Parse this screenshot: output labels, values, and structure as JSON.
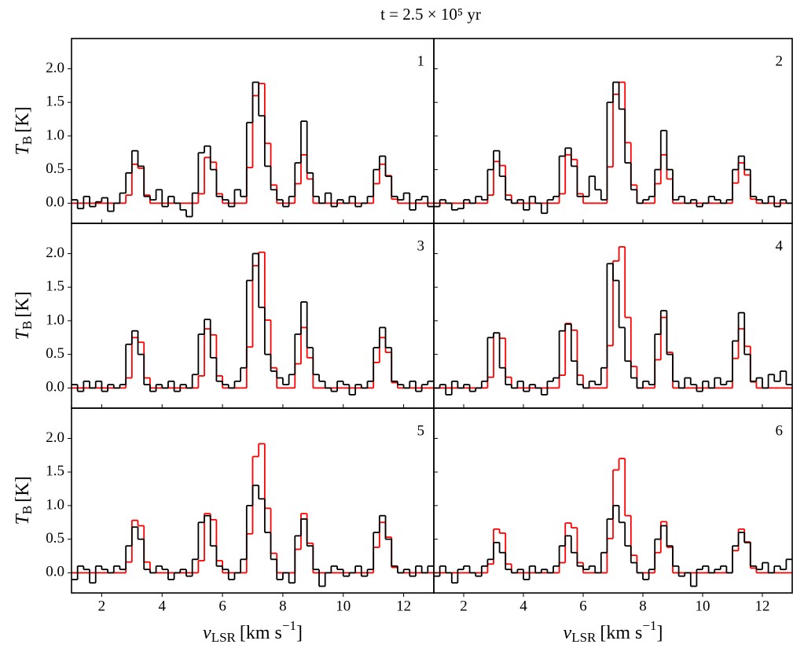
{
  "title": "t = 2.5 × 10⁵ yr",
  "chart_data": {
    "type": "line",
    "xlabel": {
      "symbol": "v",
      "sub": "LSR",
      "unit": "[km s",
      "sup": "−1",
      "close": "]"
    },
    "ylabel": {
      "symbol": "T",
      "sub": "B",
      "unit": "[K]"
    },
    "xlim": [
      1.0,
      13.0
    ],
    "ylim": [
      -0.3,
      2.45
    ],
    "xticks": [
      2,
      4,
      6,
      8,
      10,
      12
    ],
    "yticks": [
      {
        "value": 0,
        "label": "0.0"
      },
      0.5,
      {
        "value": 1,
        "label": "1.0"
      },
      1.5,
      {
        "value": 2,
        "label": "2.0"
      }
    ],
    "x": [
      1.1,
      1.3,
      1.5,
      1.7,
      1.9,
      2.1,
      2.3,
      2.5,
      2.7,
      2.9,
      3.1,
      3.3,
      3.5,
      3.7,
      3.9,
      4.1,
      4.3,
      4.5,
      4.7,
      4.9,
      5.1,
      5.3,
      5.5,
      5.7,
      5.9,
      6.1,
      6.3,
      6.5,
      6.7,
      6.9,
      7.1,
      7.3,
      7.5,
      7.7,
      7.9,
      8.1,
      8.3,
      8.5,
      8.7,
      8.9,
      9.1,
      9.3,
      9.5,
      9.7,
      9.9,
      10.1,
      10.3,
      10.5,
      10.7,
      10.9,
      11.1,
      11.3,
      11.5,
      11.7,
      11.9,
      12.1,
      12.3,
      12.5,
      12.7,
      12.9
    ],
    "panels": [
      {
        "label": "1",
        "series": [
          {
            "color": "#ff0000",
            "values": [
              0,
              0,
              0,
              0,
              0,
              0,
              0,
              0,
              0,
              0.12,
              0.58,
              0.52,
              0.12,
              0,
              0,
              0,
              0,
              0,
              0,
              0,
              0,
              0.14,
              0.68,
              0.61,
              0.14,
              0,
              0,
              0,
              0,
              0.53,
              1.6,
              1.78,
              0.89,
              0.27,
              0,
              0,
              0,
              0.29,
              0.72,
              0.36,
              0,
              0,
              0,
              0,
              0,
              0,
              0,
              0,
              0,
              0,
              0.29,
              0.58,
              0.41,
              0.06,
              0,
              0,
              0,
              0,
              0,
              0
            ]
          },
          {
            "color": "#000000",
            "values": [
              0.05,
              -0.08,
              0.1,
              -0.05,
              0.02,
              0.08,
              -0.12,
              0,
              0.15,
              0.45,
              0.78,
              0.55,
              0.1,
              0.05,
              0.2,
              -0.05,
              0.1,
              0,
              -0.1,
              -0.2,
              0.15,
              0.75,
              0.85,
              0.5,
              0.1,
              0.05,
              -0.05,
              0.2,
              0.1,
              1.2,
              1.8,
              1.3,
              0.55,
              0.2,
              0.05,
              -0.05,
              0.1,
              0.6,
              1.22,
              0.45,
              0.1,
              0,
              0.15,
              -0.05,
              0.05,
              0,
              0.1,
              -0.05,
              0,
              0.1,
              0.5,
              0.7,
              0.4,
              0.1,
              0.05,
              0.15,
              -0.1,
              0.05,
              0.1,
              -0.05
            ]
          }
        ]
      },
      {
        "label": "2",
        "series": [
          {
            "color": "#ff0000",
            "values": [
              0,
              0,
              0,
              0,
              0,
              0,
              0,
              0,
              0,
              0.12,
              0.62,
              0.56,
              0.12,
              0,
              0,
              0,
              0,
              0,
              0,
              0,
              0,
              0.14,
              0.72,
              0.65,
              0.14,
              0,
              0,
              0,
              0,
              0.54,
              1.62,
              1.8,
              0.9,
              0.27,
              0,
              0,
              0,
              0.29,
              0.72,
              0.36,
              0,
              0,
              0,
              0,
              0,
              0,
              0,
              0,
              0,
              0,
              0.3,
              0.6,
              0.42,
              0.06,
              0,
              0,
              0,
              0,
              0,
              0
            ]
          },
          {
            "color": "#000000",
            "values": [
              -0.05,
              0.05,
              0,
              -0.1,
              -0.08,
              0.05,
              0,
              0.1,
              0.05,
              0.5,
              0.78,
              0.4,
              0.05,
              0,
              0.05,
              -0.1,
              0.1,
              0,
              -0.15,
              0.05,
              0.1,
              0.7,
              0.82,
              0.55,
              0.1,
              0.1,
              0.4,
              0.2,
              0.05,
              1.5,
              1.8,
              1.4,
              0.6,
              0.2,
              0,
              0.05,
              0.1,
              0.5,
              1.08,
              0.5,
              0.05,
              0.1,
              0,
              0.05,
              -0.05,
              0,
              0.1,
              0.05,
              0,
              0.05,
              0.5,
              0.7,
              0.5,
              0.1,
              0.05,
              0,
              0.1,
              -0.05,
              0.05,
              0
            ]
          }
        ]
      },
      {
        "label": "3",
        "series": [
          {
            "color": "#ff0000",
            "values": [
              0,
              0,
              0,
              0,
              0,
              0,
              0,
              0,
              0,
              0.15,
              0.75,
              0.68,
              0.15,
              0,
              0,
              0,
              0,
              0,
              0,
              0,
              0,
              0.18,
              0.88,
              0.79,
              0.18,
              0,
              0,
              0,
              0,
              0.61,
              1.82,
              2.02,
              1.01,
              0.3,
              0,
              0,
              0,
              0.36,
              0.9,
              0.45,
              0,
              0,
              0,
              0,
              0,
              0,
              0,
              0,
              0,
              0,
              0.38,
              0.75,
              0.53,
              0.08,
              0,
              0,
              0,
              0,
              0,
              0
            ]
          },
          {
            "color": "#000000",
            "values": [
              0.05,
              -0.05,
              0.1,
              0,
              0.1,
              -0.05,
              0.05,
              0,
              0.05,
              0.65,
              0.85,
              0.5,
              0.05,
              -0.05,
              0.05,
              0,
              0.1,
              -0.05,
              0.05,
              0,
              0.2,
              0.8,
              1.02,
              0.45,
              0.1,
              0.05,
              0,
              0.1,
              0.3,
              1.6,
              2.0,
              1.2,
              0.5,
              0.25,
              0.15,
              0.05,
              0.2,
              0.8,
              1.28,
              0.6,
              0.2,
              0.1,
              0,
              -0.05,
              0.1,
              0.05,
              -0.1,
              0.05,
              0,
              0.1,
              0.6,
              0.9,
              0.6,
              0.1,
              0.05,
              0,
              0.1,
              -0.05,
              0.05,
              0.1
            ]
          }
        ]
      },
      {
        "label": "4",
        "series": [
          {
            "color": "#ff0000",
            "values": [
              0,
              0,
              0,
              0,
              0,
              0,
              0,
              0,
              0,
              0.16,
              0.82,
              0.74,
              0.16,
              0,
              0,
              0,
              0,
              0,
              0,
              0,
              0,
              0.19,
              0.96,
              0.86,
              0.19,
              0,
              0,
              0,
              0,
              0.63,
              1.89,
              2.1,
              1.05,
              0.32,
              0,
              0,
              0,
              0.42,
              1.05,
              0.53,
              0,
              0,
              0,
              0,
              0,
              0,
              0,
              0,
              0,
              0,
              0.44,
              0.88,
              0.62,
              0.09,
              0,
              0,
              0,
              0,
              0,
              0
            ]
          },
          {
            "color": "#000000",
            "values": [
              0,
              0.05,
              -0.1,
              0.1,
              0,
              0.05,
              -0.05,
              0,
              0.1,
              0.75,
              0.82,
              0.3,
              0.05,
              0,
              0.1,
              -0.05,
              0.05,
              0,
              -0.1,
              0.1,
              0.15,
              0.85,
              0.95,
              0.4,
              0.05,
              0,
              0.1,
              0.05,
              0.3,
              1.85,
              1.6,
              0.9,
              0.4,
              0.15,
              0,
              0.1,
              0.05,
              0.8,
              1.15,
              0.5,
              0.1,
              0,
              0.15,
              0.05,
              -0.05,
              0.1,
              0,
              0.15,
              0.05,
              0.1,
              0.7,
              1.12,
              0.5,
              0.1,
              0.15,
              0,
              0.2,
              0.1,
              0.25,
              0.05
            ]
          }
        ]
      },
      {
        "label": "5",
        "series": [
          {
            "color": "#ff0000",
            "values": [
              0,
              0,
              0,
              0,
              0,
              0,
              0,
              0,
              0,
              0.16,
              0.78,
              0.7,
              0.16,
              0,
              0,
              0,
              0,
              0,
              0,
              0,
              0,
              0.18,
              0.88,
              0.79,
              0.18,
              0,
              0,
              0,
              0,
              0.58,
              1.73,
              1.92,
              0.96,
              0.29,
              0,
              0,
              0,
              0.35,
              0.88,
              0.44,
              0,
              0,
              0,
              0,
              0,
              0,
              0,
              0,
              0,
              0,
              0.38,
              0.75,
              0.53,
              0.08,
              0,
              0,
              0,
              0,
              0,
              0
            ]
          },
          {
            "color": "#000000",
            "values": [
              -0.1,
              0.1,
              0.05,
              -0.15,
              0.1,
              0.05,
              0,
              0.1,
              0.05,
              0.4,
              0.68,
              0.5,
              0.05,
              0,
              0.1,
              0.05,
              -0.1,
              0,
              0.05,
              -0.05,
              0.2,
              0.75,
              0.85,
              0.4,
              0.1,
              0.05,
              -0.1,
              0,
              0.2,
              1.0,
              1.3,
              1.1,
              0.6,
              0.2,
              -0.1,
              0,
              -0.15,
              0.55,
              0.8,
              0.4,
              0.05,
              -0.2,
              0,
              0.1,
              0.05,
              -0.05,
              0,
              0.1,
              -0.05,
              0.05,
              0.6,
              0.85,
              0.5,
              0.1,
              0,
              0.05,
              -0.05,
              0.1,
              0,
              0.1
            ]
          }
        ]
      },
      {
        "label": "6",
        "series": [
          {
            "color": "#ff0000",
            "values": [
              0,
              0,
              0,
              0,
              0,
              0,
              0,
              0,
              0,
              0.13,
              0.65,
              0.59,
              0.13,
              0,
              0,
              0,
              0,
              0,
              0,
              0,
              0,
              0.15,
              0.74,
              0.67,
              0.15,
              0,
              0,
              0,
              0,
              0.51,
              1.53,
              1.7,
              0.85,
              0.26,
              0,
              0,
              0,
              0.3,
              0.76,
              0.38,
              0,
              0,
              0,
              0,
              0,
              0,
              0,
              0,
              0,
              0,
              0.33,
              0.65,
              0.46,
              0.07,
              0,
              0,
              0,
              0,
              0,
              0
            ]
          },
          {
            "color": "#000000",
            "values": [
              -0.05,
              0.1,
              0,
              -0.15,
              0.05,
              0.1,
              0,
              -0.05,
              0.1,
              0.2,
              0.45,
              0.3,
              0.05,
              0,
              0.05,
              -0.1,
              0.1,
              0,
              0.05,
              0,
              0.1,
              0.4,
              0.55,
              0.3,
              0.1,
              0.05,
              0.1,
              0,
              0.3,
              0.8,
              1.0,
              0.75,
              0.4,
              0.15,
              0,
              -0.1,
              0.05,
              0.5,
              0.7,
              0.4,
              0.1,
              -0.05,
              0,
              -0.2,
              0.05,
              0.1,
              0,
              0.05,
              0.1,
              0,
              0.4,
              0.6,
              0.45,
              0.1,
              0.05,
              0.15,
              0,
              0.1,
              0.05,
              0.2
            ]
          }
        ]
      }
    ]
  }
}
